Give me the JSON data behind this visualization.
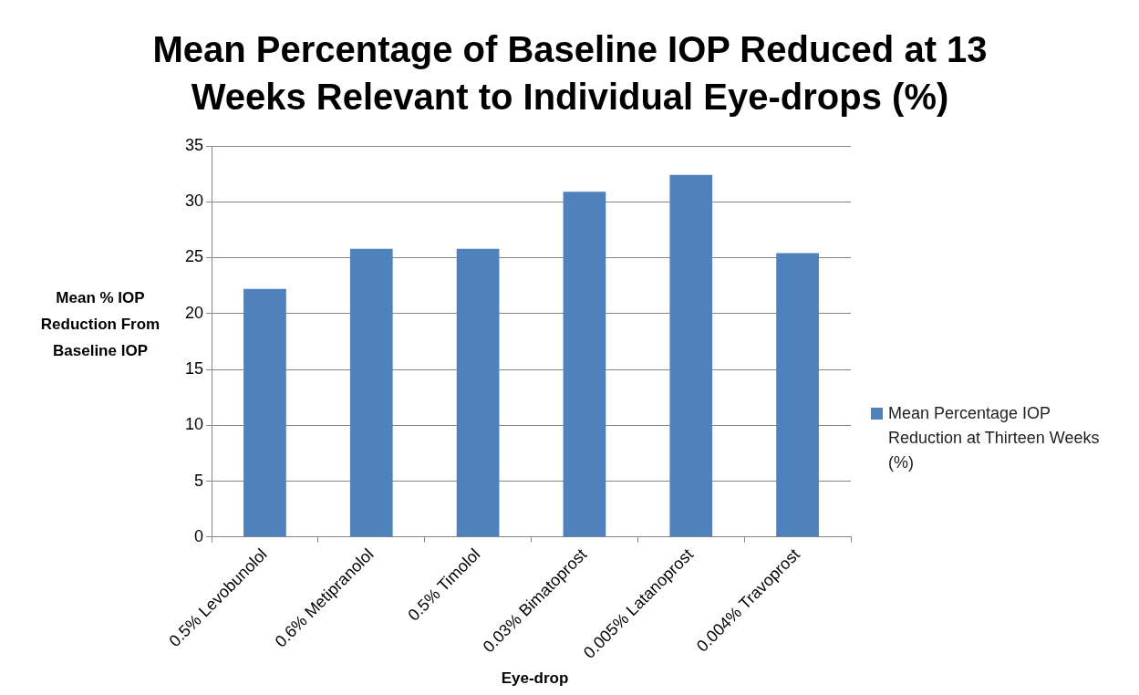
{
  "chart_data": {
    "type": "bar",
    "title": "Mean Percentage of Baseline IOP Reduced at 13 Weeks Relevant to Individual Eye-drops (%)",
    "xlabel": "Eye-drop",
    "ylabel": "Mean % IOP Reduction From Baseline IOP",
    "categories": [
      "0.5% Levobunolol",
      "0.6% Metipranolol",
      "0.5% Timolol",
      "0.03% Bimatoprost",
      "0.005% Latanoprost",
      "0.004% Travoprost"
    ],
    "series": [
      {
        "name": "Mean Percentage IOP Reduction at Thirteen Weeks (%)",
        "color": "#4f81bd",
        "values": [
          22.2,
          25.8,
          25.8,
          30.9,
          32.4,
          25.4
        ]
      }
    ],
    "ylim": [
      0,
      35
    ],
    "yticks": [
      0,
      5,
      10,
      15,
      20,
      25,
      30,
      35
    ],
    "grid": "y",
    "legend": "right"
  }
}
